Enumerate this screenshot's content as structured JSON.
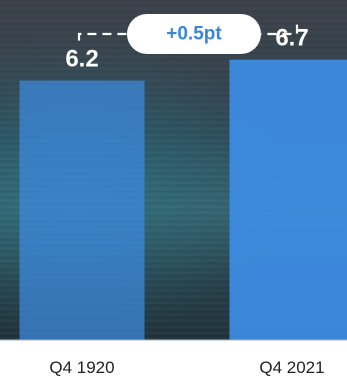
{
  "chart_data": {
    "type": "bar",
    "categories": [
      "Q4 1920",
      "Q4 2021"
    ],
    "values": [
      6.2,
      6.7
    ],
    "value_labels": [
      "6.2",
      "6.7"
    ],
    "annotation": "+0.5pt",
    "title": "",
    "xlabel": "",
    "ylabel": "",
    "ylim": [
      0,
      7.6
    ],
    "grid": false,
    "bar_color": "#3d8be0",
    "annotation_color": "#3a86d8"
  }
}
